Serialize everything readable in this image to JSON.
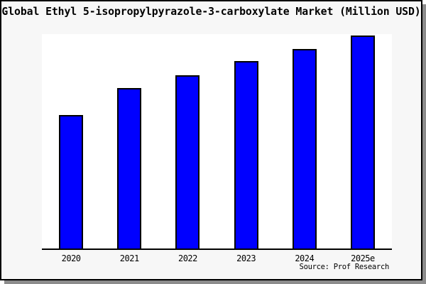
{
  "chart_data": {
    "type": "bar",
    "title": "Global Ethyl 5-isopropylpyrazole-3-carboxylate Market (Million USD)",
    "categories": [
      "2020",
      "2021",
      "2022",
      "2023",
      "2024",
      "2025e"
    ],
    "values": [
      62.3,
      74.7,
      80.8,
      87.3,
      93.0,
      99.3
    ],
    "xlabel": "",
    "ylabel": "",
    "ylim": [
      0,
      100
    ],
    "grid": false,
    "legend": false,
    "y_axis_labels_shown": false,
    "source": "Source: Prof Research"
  },
  "colors": {
    "bar_fill": "#0000ff",
    "bar_border": "#000000",
    "figure_background": "#f7f7f7",
    "plot_background": "#ffffff",
    "frame_border": "#000000",
    "shadow": "#8c8c8c",
    "text": "#000000"
  }
}
